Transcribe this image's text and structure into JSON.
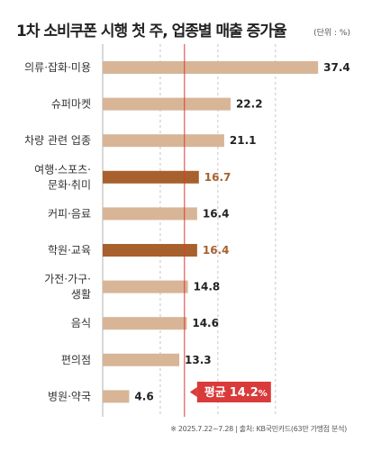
{
  "title": "1차 소비쿠폰 시행 첫 주, 업종별 매출 증가율",
  "unit": "(단위 : %)",
  "footer": "※ 2025.7.22~7.28 | 출처: KB국민카드(63만 가맹점 분석)",
  "colors": {
    "bar": "#d8b597",
    "highlight": "#a8612d",
    "average": "#d93a3a",
    "gridline": "#b8b8b8",
    "baseline": "#b0b0b0"
  },
  "chart_data": {
    "type": "bar",
    "orientation": "horizontal",
    "categories": [
      [
        "의류·잡화·미용"
      ],
      [
        "슈퍼마켓"
      ],
      [
        "차량 관련 업종"
      ],
      [
        "여행·스포츠·",
        "문화·취미"
      ],
      [
        "커피·음료"
      ],
      [
        "학원·교육"
      ],
      [
        "가전·가구·",
        "생활"
      ],
      [
        "음식"
      ],
      [
        "편의점"
      ],
      [
        "병원·약국"
      ]
    ],
    "values": [
      37.4,
      22.2,
      21.1,
      16.7,
      16.4,
      16.4,
      14.8,
      14.6,
      13.3,
      4.6
    ],
    "value_labels": [
      "37.4",
      "22.2",
      "21.1",
      "16.7",
      "16.4",
      "16.4",
      "14.8",
      "14.6",
      "13.3",
      "4.6"
    ],
    "highlighted": [
      false,
      false,
      false,
      true,
      false,
      true,
      false,
      false,
      false,
      false
    ],
    "average": {
      "label": "평균",
      "value": 14.2,
      "value_label": "14.2",
      "unit": "%"
    },
    "xlim": [
      0,
      38
    ],
    "grid": "dashed vertical"
  }
}
